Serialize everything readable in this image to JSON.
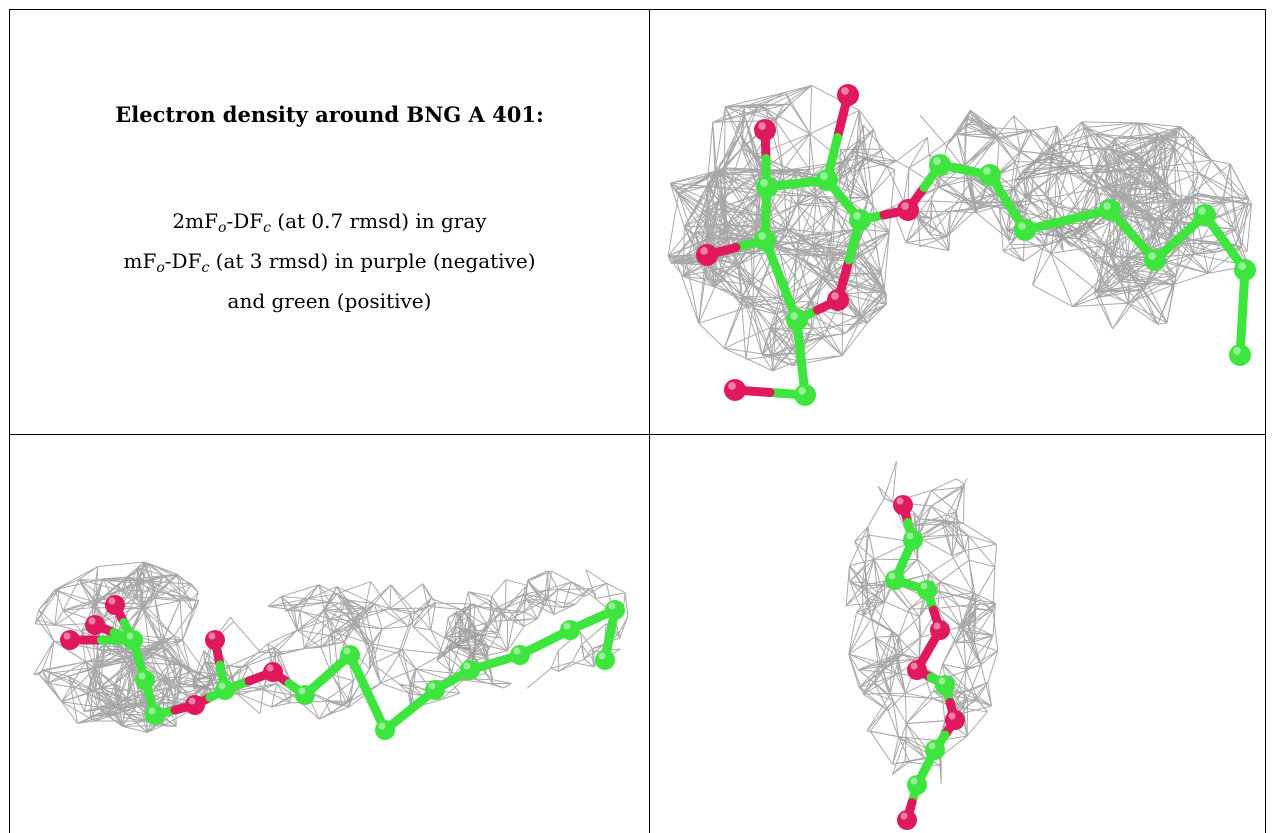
{
  "title": "Electron density around BNG A 401:",
  "legend": {
    "line1": {
      "a": "2mF",
      "a_sub": "o",
      "b": "-DF",
      "b_sub": "c",
      "rest": " (at 0.7 rmsd) in gray"
    },
    "line2": {
      "a": "mF",
      "a_sub": "o",
      "b": "-DF",
      "b_sub": "c",
      "rest": " (at 3 rmsd) in purple (negative)"
    },
    "line3": "and green (positive)"
  },
  "colors": {
    "carbon": "#3ee53e",
    "oxygen": "#e0195f",
    "mesh": "#9a9a9a"
  },
  "panels": [
    "top-right-view",
    "bottom-left-view",
    "bottom-right-view"
  ]
}
